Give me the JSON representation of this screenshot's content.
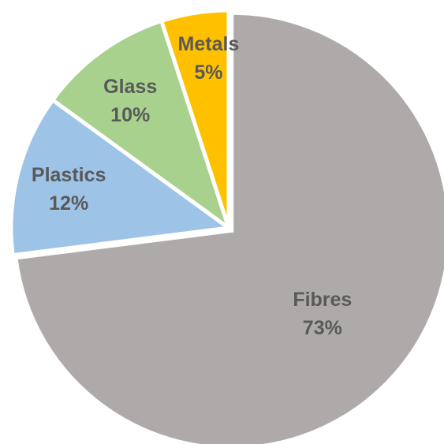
{
  "chart_data": {
    "type": "pie",
    "title": "",
    "start_angle_deg": 0,
    "direction": "clockwise",
    "legend": "none",
    "slices": [
      {
        "name": "Fibres",
        "label": "73%",
        "value": 73,
        "color": "#aeaaaa"
      },
      {
        "name": "Plastics",
        "label": "12%",
        "value": 12,
        "color": "#9dc3e6"
      },
      {
        "name": "Glass",
        "label": "10%",
        "value": 10,
        "color": "#a9d18e"
      },
      {
        "name": "Metals",
        "label": "5%",
        "value": 5,
        "color": "#ffc000"
      }
    ]
  }
}
